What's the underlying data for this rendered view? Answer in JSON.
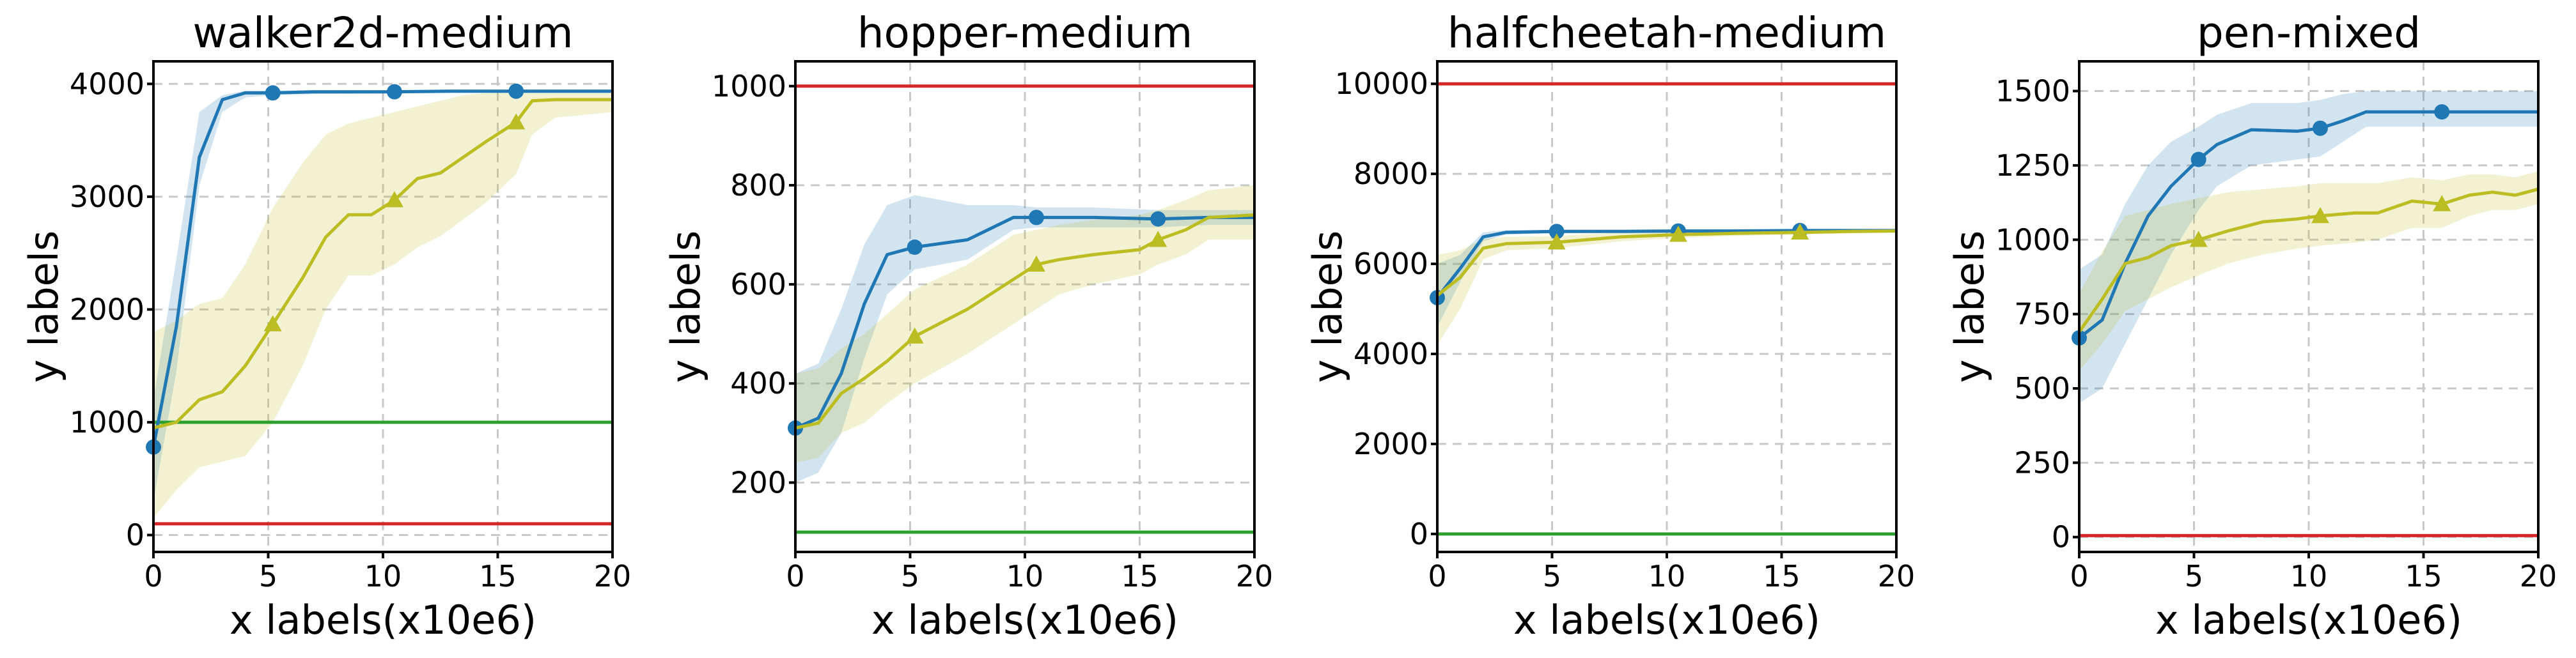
{
  "chart_data": [
    {
      "type": "line",
      "title": "walker2d-medium",
      "xlabel": "x labels(x10e6)",
      "ylabel": "y labels",
      "xlim": [
        0,
        20
      ],
      "ylim": [
        -150,
        4200
      ],
      "xticks": [
        0,
        5,
        10,
        15,
        20
      ],
      "yticks": [
        0,
        1000,
        2000,
        3000,
        4000
      ],
      "grid": true,
      "hlines": [
        {
          "y": 1000,
          "color": "#2ca02c"
        },
        {
          "y": 100,
          "color": "#d62728"
        }
      ],
      "series": [
        {
          "color": "#1f77b4",
          "marker": "circle",
          "x": [
            0,
            1,
            2,
            3,
            4,
            5.2,
            7,
            10.5,
            13,
            15.8,
            18,
            20
          ],
          "y": [
            780,
            1850,
            3350,
            3860,
            3920,
            3920,
            3930,
            3930,
            3935,
            3935,
            3935,
            3935
          ],
          "lower": [
            300,
            1450,
            3100,
            3750,
            3880,
            3900,
            3910,
            3915,
            3920,
            3920,
            3920,
            3920
          ],
          "upper": [
            1200,
            2450,
            3750,
            3900,
            3940,
            3940,
            3945,
            3945,
            3950,
            3950,
            3950,
            3950
          ],
          "markers_x": [
            0,
            5.2,
            10.5,
            15.8
          ]
        },
        {
          "color": "#bcbd22",
          "marker": "triangle",
          "x": [
            0,
            1,
            2,
            3,
            4,
            5.2,
            6.5,
            7.5,
            8.5,
            9.5,
            10.5,
            11.5,
            12.5,
            13.5,
            14.5,
            15.8,
            16.5,
            17.5,
            20
          ],
          "y": [
            950,
            1000,
            1200,
            1270,
            1500,
            1870,
            2280,
            2640,
            2840,
            2840,
            2970,
            3160,
            3210,
            3350,
            3490,
            3660,
            3850,
            3860,
            3860
          ],
          "lower": [
            150,
            400,
            600,
            650,
            700,
            1000,
            1500,
            2000,
            2300,
            2300,
            2400,
            2550,
            2650,
            2800,
            2950,
            3200,
            3550,
            3700,
            3750
          ],
          "upper": [
            1800,
            1900,
            2050,
            2100,
            2400,
            2900,
            3300,
            3550,
            3650,
            3700,
            3750,
            3800,
            3850,
            3900,
            3920,
            3940,
            3950,
            3950,
            3950
          ],
          "markers_x": [
            5.2,
            10.5,
            15.8
          ]
        }
      ]
    },
    {
      "type": "line",
      "title": "hopper-medium",
      "xlabel": "x labels(x10e6)",
      "ylabel": "y labels",
      "xlim": [
        0,
        20
      ],
      "ylim": [
        60,
        1050
      ],
      "xticks": [
        0,
        5,
        10,
        15,
        20
      ],
      "yticks": [
        200,
        400,
        600,
        800,
        1000
      ],
      "grid": true,
      "hlines": [
        {
          "y": 1000,
          "color": "#d62728"
        },
        {
          "y": 100,
          "color": "#2ca02c"
        }
      ],
      "series": [
        {
          "color": "#1f77b4",
          "marker": "circle",
          "x": [
            0,
            1,
            2,
            3,
            4,
            5.2,
            7.5,
            9.5,
            10.5,
            13,
            15.8,
            18,
            20
          ],
          "y": [
            310,
            330,
            420,
            560,
            660,
            675,
            690,
            735,
            735,
            735,
            732,
            735,
            735
          ],
          "lower": [
            200,
            220,
            300,
            450,
            580,
            630,
            650,
            710,
            715,
            715,
            715,
            720,
            720
          ],
          "upper": [
            420,
            440,
            550,
            680,
            760,
            780,
            760,
            760,
            755,
            755,
            750,
            750,
            750
          ],
          "markers_x": [
            0,
            5.2,
            10.5,
            15.8
          ]
        },
        {
          "color": "#bcbd22",
          "marker": "triangle",
          "x": [
            0,
            1,
            2,
            3,
            4,
            5.2,
            7.5,
            9.5,
            10.5,
            11.5,
            13,
            15,
            15.8,
            17,
            18,
            20
          ],
          "y": [
            310,
            320,
            380,
            410,
            445,
            495,
            550,
            610,
            640,
            650,
            660,
            670,
            690,
            710,
            735,
            740
          ],
          "lower": [
            240,
            250,
            300,
            320,
            360,
            400,
            460,
            520,
            550,
            580,
            600,
            620,
            640,
            660,
            690,
            690
          ],
          "upper": [
            420,
            430,
            470,
            500,
            540,
            590,
            640,
            700,
            710,
            720,
            730,
            740,
            750,
            770,
            790,
            800
          ],
          "markers_x": [
            5.2,
            10.5,
            15.8
          ]
        }
      ]
    },
    {
      "type": "line",
      "title": "halfcheetah-medium",
      "xlabel": "x labels(x10e6)",
      "ylabel": "y labels",
      "xlim": [
        0,
        20
      ],
      "ylim": [
        -400,
        10500
      ],
      "xticks": [
        0,
        5,
        10,
        15,
        20
      ],
      "yticks": [
        0,
        2000,
        4000,
        6000,
        8000,
        10000
      ],
      "grid": true,
      "hlines": [
        {
          "y": 10000,
          "color": "#d62728"
        },
        {
          "y": 0,
          "color": "#2ca02c"
        }
      ],
      "series": [
        {
          "color": "#1f77b4",
          "marker": "circle",
          "x": [
            0,
            1,
            2,
            3,
            5.2,
            8,
            10.5,
            13,
            15.8,
            18,
            20
          ],
          "y": [
            5250,
            5900,
            6600,
            6700,
            6720,
            6720,
            6730,
            6730,
            6740,
            6740,
            6740
          ],
          "lower": [
            4600,
            5600,
            6500,
            6650,
            6680,
            6690,
            6700,
            6700,
            6710,
            6710,
            6710
          ],
          "upper": [
            6000,
            6200,
            6700,
            6750,
            6760,
            6760,
            6770,
            6770,
            6770,
            6770,
            6770
          ],
          "markers_x": [
            0,
            5.2,
            10.5,
            15.8
          ]
        },
        {
          "color": "#bcbd22",
          "marker": "triangle",
          "x": [
            0,
            1,
            2,
            3,
            5.2,
            8,
            10.5,
            13,
            15.8,
            18,
            20
          ],
          "y": [
            5300,
            5700,
            6350,
            6450,
            6480,
            6600,
            6650,
            6680,
            6700,
            6720,
            6730
          ],
          "lower": [
            4200,
            5000,
            6100,
            6300,
            6350,
            6500,
            6580,
            6620,
            6650,
            6680,
            6690
          ],
          "upper": [
            6200,
            6300,
            6550,
            6600,
            6620,
            6700,
            6720,
            6740,
            6750,
            6760,
            6770
          ],
          "markers_x": [
            5.2,
            10.5,
            15.8
          ]
        }
      ]
    },
    {
      "type": "line",
      "title": "pen-mixed",
      "xlabel": "x labels(x10e6)",
      "ylabel": "y labels",
      "xlim": [
        0,
        20
      ],
      "ylim": [
        -50,
        1600
      ],
      "xticks": [
        0,
        5,
        10,
        15,
        20
      ],
      "yticks": [
        0,
        250,
        500,
        750,
        1000,
        1250,
        1500
      ],
      "grid": true,
      "hlines": [
        {
          "y": 5,
          "color": "#d62728"
        }
      ],
      "series": [
        {
          "color": "#1f77b4",
          "marker": "circle",
          "x": [
            0,
            1,
            2,
            3,
            4,
            5.2,
            6,
            7.5,
            9.5,
            10.5,
            11.5,
            12.5,
            14,
            15.8,
            17,
            20
          ],
          "y": [
            670,
            730,
            920,
            1080,
            1180,
            1270,
            1320,
            1370,
            1365,
            1375,
            1400,
            1430,
            1430,
            1430,
            1430,
            1430
          ],
          "lower": [
            450,
            500,
            650,
            800,
            950,
            1100,
            1180,
            1250,
            1270,
            1280,
            1330,
            1380,
            1380,
            1380,
            1380,
            1380
          ],
          "upper": [
            900,
            950,
            1120,
            1250,
            1330,
            1380,
            1420,
            1460,
            1460,
            1470,
            1490,
            1500,
            1500,
            1500,
            1500,
            1500
          ],
          "markers_x": [
            0,
            5.2,
            10.5,
            15.8
          ]
        },
        {
          "color": "#bcbd22",
          "marker": "triangle",
          "x": [
            0,
            1,
            2,
            3,
            4,
            5.2,
            6.5,
            8,
            9.5,
            10.5,
            12,
            13,
            14.5,
            15.8,
            17,
            18,
            19,
            20
          ],
          "y": [
            690,
            800,
            920,
            940,
            980,
            1000,
            1030,
            1060,
            1070,
            1080,
            1090,
            1090,
            1130,
            1120,
            1150,
            1160,
            1150,
            1170
          ],
          "lower": [
            560,
            650,
            760,
            800,
            840,
            880,
            920,
            950,
            970,
            980,
            990,
            1000,
            1040,
            1040,
            1080,
            1100,
            1100,
            1120
          ],
          "upper": [
            820,
            960,
            1080,
            1100,
            1120,
            1140,
            1160,
            1170,
            1180,
            1190,
            1190,
            1190,
            1210,
            1200,
            1220,
            1220,
            1210,
            1230
          ],
          "markers_x": [
            5.2,
            10.5,
            15.8
          ]
        }
      ]
    }
  ]
}
